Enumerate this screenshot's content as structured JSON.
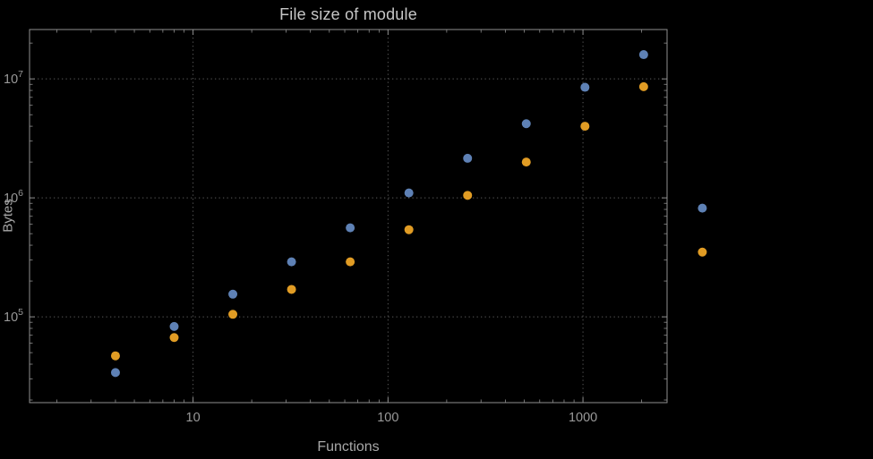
{
  "window": {
    "background": "#000000"
  },
  "chart_data": {
    "type": "scatter",
    "title": "File size of module",
    "xlabel": "Functions",
    "ylabel": "Bytes",
    "xscale": "log",
    "yscale": "log",
    "xlim": [
      1.45,
      2700
    ],
    "ylim": [
      19000,
      26000000
    ],
    "grid": "dotted-major",
    "legend": "none",
    "x": [
      4,
      8,
      16,
      32,
      64,
      128,
      256,
      512,
      1024,
      2048,
      4096
    ],
    "series": [
      {
        "name": "blue",
        "color": "#5E81B5",
        "values": [
          34000,
          83000,
          155000,
          290000,
          560000,
          1100000,
          2150000,
          4200000,
          8500000,
          16000000,
          820000
        ]
      },
      {
        "name": "orange",
        "color": "#E19C24",
        "values": [
          47000,
          67000,
          105000,
          170000,
          290000,
          540000,
          1050000,
          2000000,
          4000000,
          8600000,
          350000
        ]
      }
    ],
    "x_ticks": [
      {
        "value": 10,
        "label": "10"
      },
      {
        "value": 100,
        "label": "100"
      },
      {
        "value": 1000,
        "label": "1000"
      }
    ],
    "y_ticks": [
      {
        "value": 100000,
        "base": "10",
        "exp": "5"
      },
      {
        "value": 1000000,
        "base": "10",
        "exp": "6"
      },
      {
        "value": 10000000,
        "base": "10",
        "exp": "7"
      }
    ]
  },
  "style": {
    "frame_color": "#8f8f8f",
    "grid_color": "#5c5c5c",
    "tick_text_color": "#999999",
    "title_color": "#c6c6c6",
    "axis_label_color": "#a8a8a8",
    "marker_radius": 5
  }
}
